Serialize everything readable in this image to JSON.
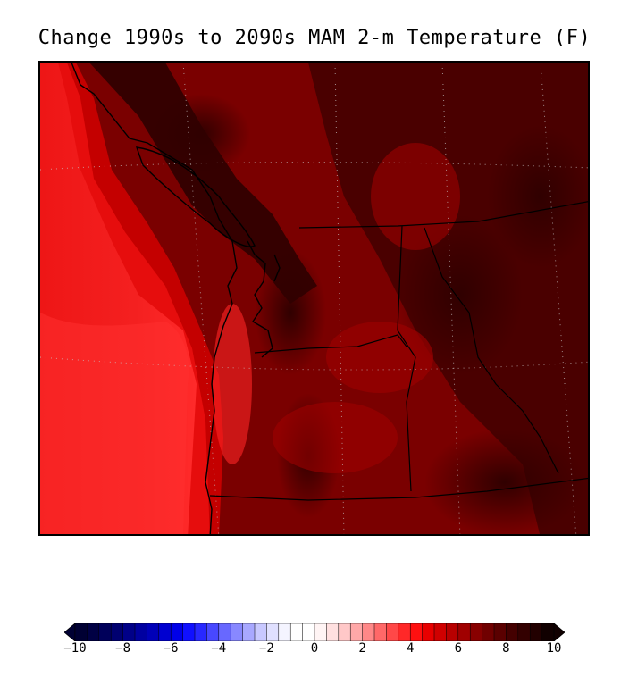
{
  "title": "Change 1990s to 2090s MAM 2-m Temperature (F)",
  "map": {
    "variable": "2-m Temperature change",
    "units": "F",
    "season": "MAM",
    "period_from": "1990s",
    "period_to": "2090s"
  },
  "colorbar": {
    "min": -10,
    "max": 10,
    "tick_labels": [
      "−10",
      "−8",
      "−6",
      "−4",
      "−2",
      "0",
      "2",
      "4",
      "6",
      "8",
      "10"
    ],
    "colors": [
      "#000033",
      "#000044",
      "#00005a",
      "#000070",
      "#000088",
      "#0000a0",
      "#0000b8",
      "#0000d0",
      "#0000e8",
      "#1010ff",
      "#2828ff",
      "#4848ff",
      "#6868ff",
      "#8888ff",
      "#a8a8ff",
      "#c8c8ff",
      "#e0e0ff",
      "#f4f4ff",
      "#ffffff",
      "#ffffff",
      "#fff4f4",
      "#ffe0e0",
      "#ffc8c8",
      "#ffa8a8",
      "#ff8888",
      "#ff6868",
      "#ff4848",
      "#ff2828",
      "#ff1010",
      "#e80000",
      "#d00000",
      "#b80000",
      "#a00000",
      "#880000",
      "#700000",
      "#5a0000",
      "#440000",
      "#330000",
      "#220000",
      "#110000"
    ]
  }
}
